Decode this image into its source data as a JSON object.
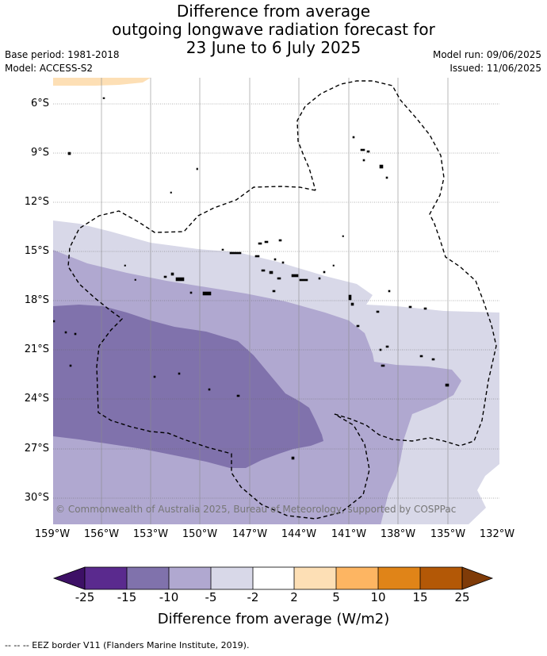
{
  "title": {
    "line1": "Difference from average",
    "line2": "outgoing longwave radiation forecast for",
    "line3": "23 June to 6 July 2025"
  },
  "meta": {
    "base_period": "Base period: 1981-2018",
    "model": "Model: ACCESS-S2",
    "model_run": "Model run: 09/06/2025",
    "issued": "Issued: 11/06/2025"
  },
  "map": {
    "lat_labels": [
      "6°S",
      "9°S",
      "12°S",
      "15°S",
      "18°S",
      "21°S",
      "24°S",
      "27°S",
      "30°S"
    ],
    "lon_labels": [
      "159°W",
      "156°W",
      "153°W",
      "150°W",
      "147°W",
      "144°W",
      "141°W",
      "138°W",
      "135°W",
      "132°W"
    ],
    "copyright": "© Commonwealth of Australia 2025, Bureau of Meteorology, supported by COSPPac",
    "colors": {
      "minus_2_to_minus_5": "#d8d8e8",
      "minus_5_to_minus_10": "#b0a8d0",
      "minus_10_to_minus_15": "#8072ac",
      "plus_2_to_plus_5": "#fddfb5"
    }
  },
  "colorbar": {
    "ticks": [
      "-25",
      "-15",
      "-10",
      "-5",
      "-2",
      "2",
      "5",
      "10",
      "15",
      "25"
    ],
    "colors": [
      "#3d1066",
      "#5a2a8e",
      "#8072ac",
      "#b0a8d0",
      "#d8d8e8",
      "#ffffff",
      "#fddfb5",
      "#fdb562",
      "#e08418",
      "#b35806",
      "#7f3b08"
    ],
    "label": "Difference from average (W/m2)"
  },
  "footer": "-- -- -- EEZ border V11 (Flanders Marine Institute, 2019)."
}
